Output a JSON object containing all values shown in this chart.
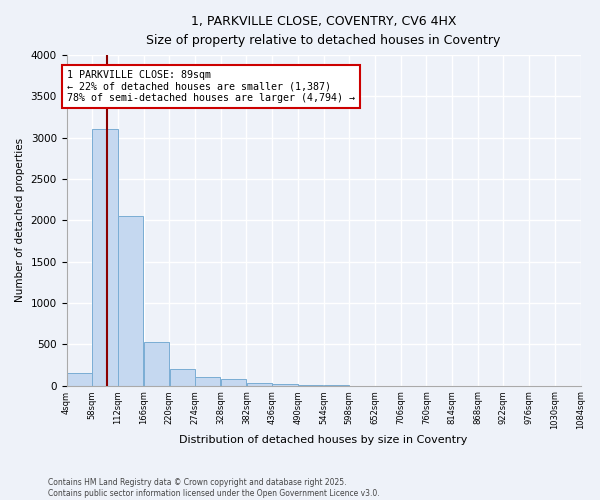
{
  "title_line1": "1, PARKVILLE CLOSE, COVENTRY, CV6 4HX",
  "title_line2": "Size of property relative to detached houses in Coventry",
  "xlabel": "Distribution of detached houses by size in Coventry",
  "ylabel": "Number of detached properties",
  "bins": [
    4,
    58,
    112,
    166,
    220,
    274,
    328,
    382,
    436,
    490,
    544,
    598,
    652,
    706,
    760,
    814,
    868,
    922,
    976,
    1030,
    1084
  ],
  "counts": [
    150,
    3100,
    2050,
    525,
    200,
    100,
    75,
    30,
    20,
    5,
    5,
    0,
    0,
    0,
    0,
    0,
    0,
    0,
    0,
    0
  ],
  "bar_color": "#c5d8f0",
  "bar_edge_color": "#7aadd4",
  "vline_x": 89,
  "vline_color": "#8b0000",
  "ylim": [
    0,
    4000
  ],
  "yticks": [
    0,
    500,
    1000,
    1500,
    2000,
    2500,
    3000,
    3500,
    4000
  ],
  "annotation_text": "1 PARKVILLE CLOSE: 89sqm\n← 22% of detached houses are smaller (1,387)\n78% of semi-detached houses are larger (4,794) →",
  "annotation_box_color": "#ffffff",
  "annotation_box_edge": "#cc0000",
  "footnote": "Contains HM Land Registry data © Crown copyright and database right 2025.\nContains public sector information licensed under the Open Government Licence v3.0.",
  "background_color": "#eef2f9",
  "grid_color": "#ffffff",
  "title1_fontsize": 9.5,
  "title2_fontsize": 8.5
}
